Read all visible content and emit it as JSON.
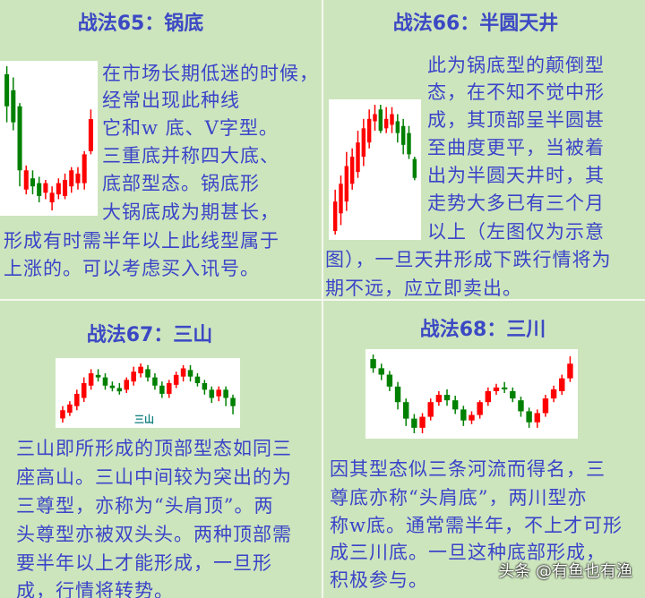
{
  "colors": {
    "background": "#cde5bd",
    "text": "#3a44c8",
    "title": "#3c49c4",
    "up_candle": "#ff0000",
    "down_candle": "#008000"
  },
  "panels": [
    {
      "title": "战法65：锅底",
      "lines": [
        "在市场长期低迷的时候，",
        "经常出现此种线",
        "它和w 底、V字型。",
        "三重底并称四大底、",
        "底部型态。锅底形",
        "大锅底成为期甚长，",
        "形成有时需半年以上此线型属于",
        "上涨的。可以考虑买入讯号。"
      ],
      "candles": [
        [
          90,
          70,
          95,
          60
        ],
        [
          80,
          60,
          88,
          55
        ],
        [
          70,
          30,
          72,
          20
        ],
        [
          18,
          30,
          33,
          15
        ],
        [
          25,
          20,
          30,
          15
        ],
        [
          22,
          14,
          26,
          10
        ],
        [
          16,
          22,
          24,
          12
        ],
        [
          10,
          16,
          20,
          5
        ],
        [
          15,
          22,
          25,
          12
        ],
        [
          14,
          24,
          28,
          12
        ],
        [
          20,
          30,
          32,
          16
        ],
        [
          22,
          28,
          32,
          18
        ],
        [
          22,
          40,
          42,
          18
        ],
        [
          42,
          62,
          68,
          40
        ]
      ]
    },
    {
      "title": "战法66：半圆天井",
      "lines": [
        "此为锅底型的颠倒型",
        "态，在不知不觉中形",
        "成，其顶部呈半圆甚",
        "至曲度更平，当被着",
        "出为半圆天井时，其",
        "走势大多已有三个月",
        "以上（左图仅为示意",
        "图），一旦天井形成下跌行情将为",
        "期不远，应立即卖出。"
      ],
      "candles": [
        [
          5,
          30,
          40,
          2
        ],
        [
          20,
          45,
          52,
          10
        ],
        [
          30,
          60,
          72,
          22
        ],
        [
          45,
          68,
          75,
          40
        ],
        [
          55,
          80,
          90,
          50
        ],
        [
          68,
          92,
          100,
          60
        ],
        [
          80,
          100,
          108,
          75
        ],
        [
          98,
          104,
          112,
          90
        ],
        [
          108,
          90,
          112,
          88
        ],
        [
          92,
          100,
          110,
          88
        ],
        [
          95,
          104,
          110,
          88
        ],
        [
          98,
          88,
          104,
          80
        ],
        [
          94,
          78,
          100,
          70
        ],
        [
          88,
          70,
          94,
          66
        ],
        [
          66,
          50,
          68,
          48
        ]
      ]
    },
    {
      "title": "战法67：三山",
      "chart_label": "三山",
      "lines": [
        "三山即所形成的顶部型态如同三",
        "座高山。三山中间较为突出的为",
        "三尊型，亦称为“头肩顶”。两",
        "头尊型亦被双头头。两种顶部需",
        "要半年以上才能形成，一旦形",
        "成，行情将转势。"
      ],
      "candles": [
        [
          5,
          15,
          20,
          0
        ],
        [
          12,
          22,
          26,
          8
        ],
        [
          20,
          35,
          40,
          15
        ],
        [
          30,
          48,
          55,
          25
        ],
        [
          45,
          60,
          65,
          40
        ],
        [
          58,
          55,
          65,
          50
        ],
        [
          55,
          45,
          60,
          40
        ],
        [
          45,
          42,
          50,
          38
        ],
        [
          42,
          38,
          48,
          34
        ],
        [
          40,
          52,
          55,
          36
        ],
        [
          50,
          62,
          68,
          45
        ],
        [
          60,
          68,
          72,
          55
        ],
        [
          65,
          55,
          70,
          50
        ],
        [
          55,
          45,
          60,
          40
        ],
        [
          45,
          35,
          50,
          30
        ],
        [
          35,
          48,
          52,
          30
        ],
        [
          46,
          58,
          62,
          42
        ],
        [
          56,
          66,
          70,
          50
        ],
        [
          64,
          56,
          70,
          50
        ],
        [
          56,
          48,
          60,
          44
        ],
        [
          48,
          40,
          52,
          34
        ],
        [
          40,
          30,
          44,
          24
        ],
        [
          32,
          40,
          44,
          26
        ],
        [
          40,
          30,
          44,
          20
        ],
        [
          30,
          20,
          34,
          10
        ]
      ]
    },
    {
      "title": "战法68：三川",
      "lines": [
        "因其型态似三条河流而得名，三",
        "尊底亦称“头肩底”，两川型亦",
        "称w底。通常需半年，不上才可形",
        "成三川底。一旦这种底部形成，",
        "积极参与。"
      ],
      "candles": [
        [
          95,
          85,
          100,
          80
        ],
        [
          85,
          78,
          90,
          72
        ],
        [
          78,
          65,
          82,
          60
        ],
        [
          65,
          48,
          70,
          40
        ],
        [
          48,
          30,
          52,
          22
        ],
        [
          30,
          20,
          35,
          14
        ],
        [
          20,
          32,
          36,
          14
        ],
        [
          32,
          48,
          52,
          28
        ],
        [
          48,
          56,
          60,
          44
        ],
        [
          56,
          50,
          62,
          44
        ],
        [
          50,
          40,
          55,
          35
        ],
        [
          40,
          28,
          44,
          22
        ],
        [
          28,
          34,
          38,
          24
        ],
        [
          34,
          48,
          50,
          30
        ],
        [
          48,
          60,
          64,
          44
        ],
        [
          60,
          64,
          68,
          56
        ],
        [
          64,
          62,
          70,
          58
        ],
        [
          60,
          52,
          64,
          48
        ],
        [
          50,
          38,
          54,
          32
        ],
        [
          38,
          26,
          42,
          20
        ],
        [
          26,
          36,
          40,
          20
        ],
        [
          36,
          52,
          56,
          32
        ],
        [
          52,
          62,
          66,
          48
        ],
        [
          60,
          74,
          78,
          56
        ],
        [
          74,
          90,
          98,
          70
        ]
      ]
    }
  ],
  "watermark": "头条 @有鱼也有渔"
}
